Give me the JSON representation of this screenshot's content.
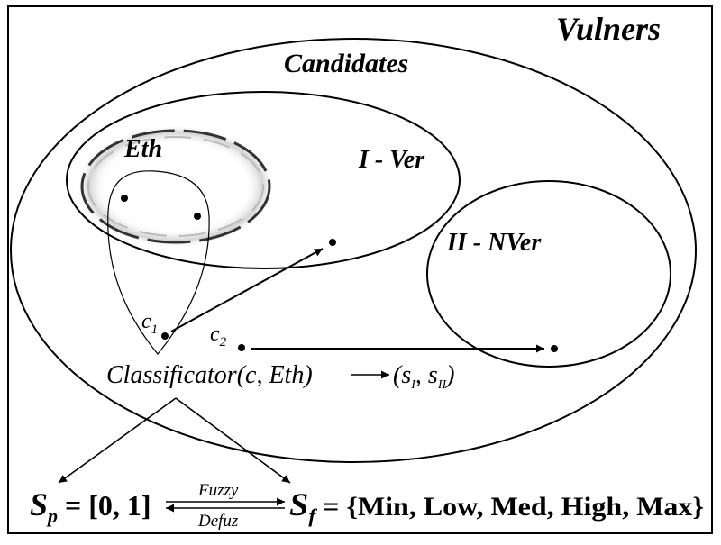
{
  "labels": {
    "vulners": "Vulners",
    "candidates": "Candidates",
    "eth": "Eth",
    "i_ver": "I - Ver",
    "ii_nver": "II - NVer",
    "c1_base": "c",
    "c1_sub": "1",
    "c2_base": "c",
    "c2_sub": "2"
  },
  "classifier": {
    "text": "Classificator(c, Eth)",
    "result_open": "(s",
    "result_sub1": "I",
    "result_sep": ", s",
    "result_sub2": "II",
    "result_close": ")"
  },
  "sets": {
    "sp_base": "S",
    "sp_sub": "p",
    "sp_value": " = [0, 1]",
    "sf_base": "S",
    "sf_sub": "f",
    "sf_value": " = {Min, Low, Med, High, Max}",
    "fuzzy": "Fuzzy",
    "defuz": "Defuz"
  }
}
